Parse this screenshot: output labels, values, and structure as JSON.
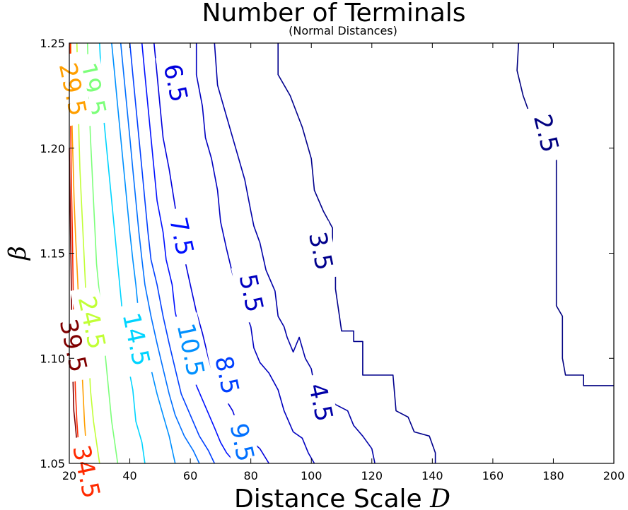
{
  "chart_data": {
    "type": "contour",
    "title": "Number of Terminals",
    "subtitle": "(Normal Distances)",
    "xlabel": "Distance Scale",
    "xlabel_symbol": "D",
    "ylabel": "β",
    "xlim": [
      20,
      200
    ],
    "ylim": [
      1.05,
      1.25
    ],
    "xticks": [
      20,
      40,
      60,
      80,
      100,
      120,
      140,
      160,
      180,
      200
    ],
    "yticks": [
      1.05,
      1.1,
      1.15,
      1.2,
      1.25
    ],
    "ytick_labels": [
      "1.05",
      "1.10",
      "1.15",
      "1.20",
      "1.25"
    ],
    "grid": false,
    "levels": [
      {
        "level": "2.5",
        "color": "#000080",
        "points": [
          [
            168.5,
            1.25
          ],
          [
            168,
            1.237
          ],
          [
            170,
            1.225
          ],
          [
            173,
            1.213
          ],
          [
            175,
            1.2
          ],
          [
            176,
            1.195
          ],
          [
            181,
            1.195
          ],
          [
            181,
            1.168
          ],
          [
            181,
            1.125
          ],
          [
            183,
            1.12
          ],
          [
            183,
            1.1
          ],
          [
            184,
            1.092
          ],
          [
            190,
            1.092
          ],
          [
            190,
            1.087
          ],
          [
            200,
            1.087
          ]
        ],
        "label_at": [
          177.5,
          1.207
        ],
        "label_rot": 76
      },
      {
        "level": "3.5",
        "color": "#00008c",
        "points": [
          [
            89,
            1.25
          ],
          [
            89,
            1.235
          ],
          [
            93,
            1.225
          ],
          [
            97,
            1.21
          ],
          [
            100,
            1.195
          ],
          [
            101,
            1.18
          ],
          [
            104,
            1.17
          ],
          [
            107,
            1.162
          ],
          [
            107,
            1.155
          ],
          [
            106,
            1.147
          ],
          [
            108,
            1.14
          ],
          [
            108,
            1.133
          ],
          [
            109,
            1.123
          ],
          [
            110,
            1.113
          ],
          [
            114,
            1.113
          ],
          [
            114,
            1.108
          ],
          [
            117,
            1.108
          ],
          [
            117,
            1.092
          ],
          [
            127,
            1.092
          ],
          [
            128,
            1.075
          ],
          [
            132,
            1.072
          ],
          [
            134,
            1.065
          ],
          [
            139,
            1.063
          ],
          [
            141,
            1.055
          ],
          [
            141,
            1.05
          ]
        ],
        "label_at": [
          103,
          1.151
        ],
        "label_rot": 78
      },
      {
        "level": "4.5",
        "color": "#0000a8",
        "points": [
          [
            68,
            1.25
          ],
          [
            69,
            1.23
          ],
          [
            72,
            1.215
          ],
          [
            75,
            1.2
          ],
          [
            78,
            1.185
          ],
          [
            80,
            1.17
          ],
          [
            81,
            1.163
          ],
          [
            83,
            1.155
          ],
          [
            85,
            1.142
          ],
          [
            88,
            1.132
          ],
          [
            89,
            1.12
          ],
          [
            91,
            1.115
          ],
          [
            92,
            1.11
          ],
          [
            94,
            1.103
          ],
          [
            96,
            1.11
          ],
          [
            98,
            1.1
          ],
          [
            100,
            1.095
          ],
          [
            101,
            1.087
          ],
          [
            104,
            1.085
          ],
          [
            108,
            1.078
          ],
          [
            112,
            1.075
          ],
          [
            114,
            1.068
          ],
          [
            117,
            1.063
          ],
          [
            120,
            1.057
          ],
          [
            121,
            1.05
          ]
        ],
        "label_at": [
          103,
          1.079
        ],
        "label_rot": 78
      },
      {
        "level": "5.5",
        "color": "#0000c0",
        "points": [
          [
            62,
            1.25
          ],
          [
            62,
            1.235
          ],
          [
            64,
            1.22
          ],
          [
            65,
            1.205
          ],
          [
            67,
            1.195
          ],
          [
            69,
            1.18
          ],
          [
            70,
            1.165
          ],
          [
            72,
            1.152
          ],
          [
            74,
            1.14
          ],
          [
            76,
            1.133
          ],
          [
            78,
            1.123
          ],
          [
            80,
            1.115
          ],
          [
            81,
            1.105
          ],
          [
            83,
            1.098
          ],
          [
            86,
            1.093
          ],
          [
            89,
            1.085
          ],
          [
            91,
            1.075
          ],
          [
            94,
            1.065
          ],
          [
            97,
            1.062
          ],
          [
            99,
            1.055
          ],
          [
            101,
            1.05
          ]
        ],
        "label_at": [
          80,
          1.131
        ],
        "label_rot": 78
      },
      {
        "level": "6.5",
        "color": "#0000dd",
        "points": [
          [
            48,
            1.25
          ],
          [
            49,
            1.235
          ],
          [
            50,
            1.22
          ],
          [
            51,
            1.205
          ],
          [
            53,
            1.19
          ],
          [
            55,
            1.172
          ],
          [
            56,
            1.16
          ],
          [
            58,
            1.148
          ],
          [
            60,
            1.135
          ],
          [
            62,
            1.122
          ],
          [
            64,
            1.112
          ],
          [
            66,
            1.1
          ],
          [
            68,
            1.09
          ],
          [
            71,
            1.082
          ],
          [
            74,
            1.075
          ],
          [
            76,
            1.067
          ],
          [
            79,
            1.062
          ],
          [
            83,
            1.057
          ],
          [
            86,
            1.05
          ]
        ],
        "label_at": [
          55,
          1.231
        ],
        "label_rot": 78
      },
      {
        "level": "7.5",
        "color": "#0010ff",
        "points": [
          [
            44,
            1.25
          ],
          [
            45,
            1.235
          ],
          [
            46,
            1.22
          ],
          [
            47,
            1.205
          ],
          [
            48,
            1.19
          ],
          [
            49,
            1.175
          ],
          [
            51,
            1.16
          ],
          [
            52,
            1.147
          ],
          [
            54,
            1.135
          ],
          [
            55,
            1.122
          ],
          [
            57,
            1.11
          ],
          [
            60,
            1.097
          ],
          [
            62,
            1.087
          ],
          [
            65,
            1.077
          ],
          [
            68,
            1.067
          ],
          [
            70,
            1.06
          ],
          [
            72,
            1.055
          ],
          [
            75,
            1.05
          ]
        ],
        "label_at": [
          57,
          1.158
        ],
        "label_rot": 78
      },
      {
        "level": "8.5",
        "color": "#0040ff",
        "points": [
          [
            40,
            1.25
          ],
          [
            41,
            1.235
          ],
          [
            42,
            1.22
          ],
          [
            43,
            1.205
          ],
          [
            44,
            1.19
          ],
          [
            45,
            1.175
          ],
          [
            46,
            1.16
          ],
          [
            47,
            1.147
          ],
          [
            49,
            1.135
          ],
          [
            51,
            1.12
          ],
          [
            53,
            1.107
          ],
          [
            55,
            1.095
          ],
          [
            57,
            1.083
          ],
          [
            60,
            1.073
          ],
          [
            63,
            1.063
          ],
          [
            66,
            1.056
          ],
          [
            68,
            1.05
          ]
        ],
        "label_at": [
          72,
          1.092
        ],
        "label_rot": 78
      },
      {
        "level": "9.5",
        "color": "#0070ff",
        "points": [
          [
            37,
            1.25
          ],
          [
            38,
            1.235
          ],
          [
            39,
            1.22
          ],
          [
            40,
            1.205
          ],
          [
            41,
            1.19
          ],
          [
            42,
            1.175
          ],
          [
            43,
            1.16
          ],
          [
            44,
            1.147
          ],
          [
            45,
            1.135
          ],
          [
            47,
            1.12
          ],
          [
            49,
            1.107
          ],
          [
            51,
            1.095
          ],
          [
            53,
            1.083
          ],
          [
            55,
            1.073
          ],
          [
            58,
            1.063
          ],
          [
            61,
            1.056
          ],
          [
            63,
            1.05
          ]
        ],
        "label_at": [
          77,
          1.06
        ],
        "label_rot": 78
      },
      {
        "level": "10.5",
        "color": "#0090ff",
        "points": [
          [
            34,
            1.25
          ],
          [
            35,
            1.235
          ],
          [
            36,
            1.22
          ],
          [
            37,
            1.205
          ],
          [
            38,
            1.19
          ],
          [
            39,
            1.175
          ],
          [
            40,
            1.16
          ],
          [
            41,
            1.147
          ],
          [
            42,
            1.135
          ],
          [
            43,
            1.12
          ],
          [
            45,
            1.107
          ],
          [
            47,
            1.095
          ],
          [
            49,
            1.083
          ],
          [
            51,
            1.073
          ],
          [
            53,
            1.063
          ],
          [
            55,
            1.05
          ]
        ],
        "label_at": [
          60,
          1.104
        ],
        "label_rot": 78
      },
      {
        "level": "14.5",
        "color": "#00d4ff",
        "points": [
          [
            30,
            1.25
          ],
          [
            30.5,
            1.235
          ],
          [
            31,
            1.22
          ],
          [
            32,
            1.205
          ],
          [
            33,
            1.19
          ],
          [
            34,
            1.175
          ],
          [
            35,
            1.16
          ],
          [
            36,
            1.145
          ],
          [
            37,
            1.13
          ],
          [
            38,
            1.115
          ],
          [
            39,
            1.1
          ],
          [
            41,
            1.085
          ],
          [
            42,
            1.07
          ],
          [
            44,
            1.06
          ],
          [
            45,
            1.05
          ]
        ],
        "label_at": [
          42,
          1.109
        ],
        "label_rot": 78
      },
      {
        "level": "19.5",
        "color": "#7dff7a",
        "points": [
          [
            26,
            1.25
          ],
          [
            26.3,
            1.235
          ],
          [
            26.6,
            1.22
          ],
          [
            27,
            1.205
          ],
          [
            27.5,
            1.19
          ],
          [
            28,
            1.175
          ],
          [
            28.5,
            1.16
          ],
          [
            29,
            1.145
          ],
          [
            30,
            1.13
          ],
          [
            31,
            1.115
          ],
          [
            32,
            1.1
          ],
          [
            33,
            1.085
          ],
          [
            34,
            1.07
          ],
          [
            35,
            1.06
          ],
          [
            36,
            1.05
          ]
        ],
        "label_at": [
          27.5,
          1.228
        ],
        "label_rot": 78
      },
      {
        "level": "24.5",
        "color": "#c1ff36",
        "points": [
          [
            22.5,
            1.25
          ],
          [
            22.8,
            1.235
          ],
          [
            23,
            1.22
          ],
          [
            23.2,
            1.205
          ],
          [
            23.5,
            1.19
          ],
          [
            24,
            1.175
          ],
          [
            24.5,
            1.16
          ],
          [
            25,
            1.145
          ],
          [
            25.5,
            1.13
          ],
          [
            26,
            1.115
          ],
          [
            26.5,
            1.1
          ],
          [
            27,
            1.085
          ],
          [
            28,
            1.07
          ],
          [
            29,
            1.06
          ],
          [
            30,
            1.05
          ]
        ],
        "label_at": [
          27.3,
          1.117
        ],
        "label_rot": 78
      },
      {
        "level": "29.5",
        "color": "#ff9f00",
        "points": [
          [
            20.5,
            1.25
          ],
          [
            20.6,
            1.235
          ],
          [
            20.8,
            1.22
          ],
          [
            21,
            1.205
          ],
          [
            21.3,
            1.19
          ],
          [
            21.6,
            1.175
          ],
          [
            22,
            1.16
          ],
          [
            22.5,
            1.145
          ],
          [
            23,
            1.13
          ],
          [
            23.5,
            1.115
          ],
          [
            24,
            1.1
          ],
          [
            24.5,
            1.085
          ],
          [
            25,
            1.07
          ],
          [
            25.5,
            1.06
          ],
          [
            26,
            1.05
          ]
        ],
        "label_at": [
          21,
          1.228
        ],
        "label_rot": 78
      },
      {
        "level": "34.5",
        "color": "#ff2a00",
        "points": [
          [
            20.3,
            1.25
          ],
          [
            20.4,
            1.22
          ],
          [
            20.6,
            1.19
          ],
          [
            21,
            1.16
          ],
          [
            21.3,
            1.13
          ],
          [
            21.7,
            1.1
          ],
          [
            22,
            1.085
          ],
          [
            22.5,
            1.07
          ],
          [
            23,
            1.06
          ],
          [
            23.5,
            1.05
          ]
        ],
        "label_at": [
          25.5,
          1.046
        ],
        "label_rot": 78
      },
      {
        "level": "39.5",
        "color": "#800000",
        "points": [
          [
            20,
            1.2
          ],
          [
            20.2,
            1.18
          ],
          [
            20.4,
            1.16
          ],
          [
            20.6,
            1.14
          ],
          [
            20.8,
            1.12
          ],
          [
            21,
            1.1
          ],
          [
            21.3,
            1.085
          ],
          [
            21.5,
            1.075
          ],
          [
            22,
            1.068
          ],
          [
            22.5,
            1.06
          ],
          [
            23,
            1.052
          ],
          [
            23.2,
            1.05
          ]
        ],
        "label_at": [
          21.2,
          1.106
        ],
        "label_rot": 78
      }
    ]
  }
}
